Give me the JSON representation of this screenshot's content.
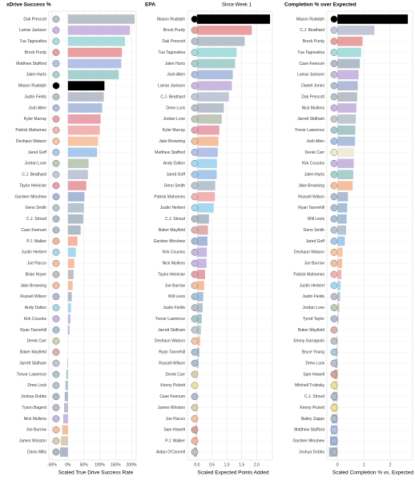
{
  "chart_data": [
    {
      "type": "bar",
      "orientation": "horizontal",
      "title": "xDrive Success %",
      "x_label": "Scaled True Drive Success Rate",
      "categories": [
        "Dak Prescott",
        "Lamar Jackson",
        "Tua Tagovailoa",
        "Brock Purdy",
        "Matthew Stafford",
        "Jalen Hurts",
        "Mason Rudolph",
        "Justin Fields",
        "Josh Allen",
        "Kyler Murray",
        "Patrick Mahomes",
        "Deshaun Watson",
        "Jared Goff",
        "Jordan Love",
        "C.J. Beathard",
        "Taylor Heinicke",
        "Gardner Minshew",
        "Geno Smith",
        "C.J. Stroud",
        "Case Keenum",
        "P.J. Walker",
        "Justin Herbert",
        "Joe Flacco",
        "Brian Hoyer",
        "Jake Browning",
        "Russell Wilson",
        "Andy Dalton",
        "Kirk Cousins",
        "Ryan Tannehill",
        "Derek Carr",
        "Baker Mayfield",
        "Jarrett Stidham",
        "Trevor Lawrence",
        "Drew Lock",
        "Joshua Dobbs",
        "Tyson Bagent",
        "Nick Mullens",
        "Joe Burrow",
        "James Winston",
        "Davis Mills"
      ],
      "values": [
        210,
        195,
        180,
        170,
        168,
        160,
        115,
        113,
        108,
        103,
        100,
        95,
        92,
        65,
        63,
        58,
        52,
        50,
        48,
        40,
        30,
        25,
        20,
        18,
        15,
        12,
        10,
        8,
        5,
        0,
        0,
        -2,
        -5,
        -8,
        -10,
        -12,
        -15,
        -18,
        -22,
        -25
      ],
      "colors": [
        "#b8c1c9",
        "#c9b8e0",
        "#a9dcdc",
        "#e8a0a0",
        "#b3c2e6",
        "#a8d0cf",
        "#000000",
        "#b9c0cc",
        "#aebfe0",
        "#e8a3ae",
        "#f2b3b3",
        "#f7c5a6",
        "#a9c9ec",
        "#c0c8b8",
        "#c0c8d8",
        "#e8a0a8",
        "#a8b8d8",
        "#b8c4d0",
        "#b0bcc8",
        "#b0bcc8",
        "#f5b5a0",
        "#a8d8f0",
        "#f5c0a0",
        "#c0c0c0",
        "#f5c0a0",
        "#b0bcd0",
        "#a8d8f0",
        "#c8b8e0",
        "#a8c0d8",
        "#d8cfb0",
        "#e0b0b0",
        "#c0c8d0",
        "#a8c8c8",
        "#b8c0cc",
        "#b0b8c8",
        "#b8c0cc",
        "#c8b8e0",
        "#f5c0a0",
        "#d8cfb0",
        "#b0b8c8"
      ],
      "xlim": [
        -60,
        215
      ],
      "xticks": [
        {
          "value": -50,
          "label": "-50%"
        },
        {
          "value": 0,
          "label": "0%"
        },
        {
          "value": 50,
          "label": "50%"
        },
        {
          "value": 100,
          "label": "100%"
        },
        {
          "value": 150,
          "label": "150%"
        },
        {
          "value": 200,
          "label": "200%"
        }
      ],
      "grid": true
    },
    {
      "type": "bar",
      "orientation": "horizontal",
      "title": "EPA",
      "subtitle": "Since Week 1",
      "x_label": "Scaled Expected Points Added",
      "categories": [
        "Mason Rudolph",
        "Brock Purdy",
        "Dak Prescott",
        "Tua Tagovailoa",
        "Jalen Hurts",
        "Josh Allen",
        "Lamar Jackson",
        "C.J. Beathard",
        "Drew Lock",
        "Jordan Love",
        "Kyler Murray",
        "Jake Browning",
        "Matthew Stafford",
        "Andy Dalton",
        "Jared Goff",
        "Geno Smith",
        "Patrick Mahomes",
        "Justin Herbert",
        "C.J. Stroud",
        "Baker Mayfield",
        "Gardner Minshew",
        "Kirk Cousins",
        "Nick Mullens",
        "Taylor Heinicke",
        "Joe Burrow",
        "Will Levis",
        "Justin Fields",
        "Trevor Lawrence",
        "Jarrett Stidham",
        "Deshaun Watson",
        "Ryan Tannehill",
        "Russell Wilson",
        "Derek Carr",
        "Kenny Pickett",
        "Case Keenum",
        "James Winston",
        "Joe Flacco",
        "Sam Howell",
        "P.J. Walker",
        "Aidan O'Connell"
      ],
      "values": [
        2.45,
        1.84,
        1.6,
        1.33,
        1.28,
        1.2,
        1.17,
        1.07,
        0.9,
        0.83,
        0.75,
        0.72,
        0.7,
        0.67,
        0.66,
        0.61,
        0.6,
        0.56,
        0.4,
        0.37,
        0.35,
        0.33,
        0.32,
        0.27,
        0.24,
        0.21,
        0.19,
        0.16,
        0.13,
        0.11,
        0.08,
        0.05,
        0.02,
        0,
        -0.01,
        -0.02,
        -0.03,
        -0.05,
        -0.07,
        -0.1
      ],
      "colors": [
        "#000000",
        "#e8a0a0",
        "#b8c1c9",
        "#a9dcdc",
        "#a8d0cf",
        "#aebfe0",
        "#c9b8e0",
        "#c0c8d8",
        "#b8c0cc",
        "#c0c8b8",
        "#e8a3ae",
        "#f5c0a0",
        "#b3c2e6",
        "#a8d8f0",
        "#a9c9ec",
        "#b8c4d0",
        "#f2b3b3",
        "#a8d8f0",
        "#b0bcc8",
        "#e0b0b0",
        "#a8b8d8",
        "#c8b8e0",
        "#c8b8e0",
        "#e8a0a8",
        "#f5c0a0",
        "#a8c0d8",
        "#b9c0cc",
        "#a8c8c8",
        "#c0c8d0",
        "#f7c5a6",
        "#a8c0d8",
        "#b0bcd0",
        "#d8cfb0",
        "#f0e0a0",
        "#b0bcc8",
        "#d8cfb0",
        "#f5c0a0",
        "#d8a0a0",
        "#f5b5a0",
        "#c0c0c0"
      ],
      "xlim": [
        -0.32,
        2.53
      ],
      "xticks": [
        {
          "value": 0,
          "label": "0.0"
        },
        0.5,
        {
          "value": 1,
          "label": "1.0"
        },
        1.5,
        {
          "value": 2,
          "label": "2.0"
        }
      ],
      "grid": true
    },
    {
      "type": "bar",
      "orientation": "horizontal",
      "title": "Completion % over Expected",
      "x_label": "Scaled Completion % vs. Expected",
      "categories": [
        "Mason Rudolph",
        "C.J. Beathard",
        "Brock Purdy",
        "Tua Tagovailoa",
        "Case Keenum",
        "Lamar Jackson",
        "Daniel Jones",
        "Dak Prescott",
        "Nick Mullens",
        "Jarrett Stidham",
        "Trevor Lawrence",
        "Josh Allen",
        "Derek Carr",
        "Kirk Cousins",
        "Jalen Hurts",
        "Jake Browning",
        "Russell Wilson",
        "Ryan Tannehill",
        "Will Levis",
        "Geno Smith",
        "Jared Goff",
        "Deshaun Watson",
        "Joe Burrow",
        "Patrick Mahomes",
        "Justin Herbert",
        "Justin Fields",
        "Jordan Love",
        "Tyrod Taylor",
        "Baker Mayfield",
        "Jimmy Garoppolo",
        "Bryce Young",
        "Drew Lock",
        "Sam Howell",
        "Mitchell Trubisky",
        "C.J. Stroud",
        "Kenny Pickett",
        "Bailey Zappe",
        "Matthew Stafford",
        "Gardner Minshew",
        "Joshua Dobbs"
      ],
      "values": [
        2.67,
        1.4,
        0.95,
        0.9,
        0.85,
        0.8,
        0.77,
        0.75,
        0.72,
        0.7,
        0.68,
        0.67,
        0.63,
        0.62,
        0.6,
        0.58,
        0.4,
        0.37,
        0.35,
        0.33,
        0.28,
        0.2,
        0.18,
        0.15,
        0.12,
        0.1,
        0.07,
        0.04,
        0,
        -0.03,
        -0.06,
        -0.09,
        -0.12,
        -0.15,
        -0.18,
        -0.2,
        -0.22,
        -0.25,
        -0.28,
        -0.32
      ],
      "colors": [
        "#000000",
        "#c0c8d8",
        "#e8a0a0",
        "#a9dcdc",
        "#b0bcc8",
        "#c9b8e0",
        "#b0bcd8",
        "#b8c1c9",
        "#c8b8e0",
        "#c0c8d0",
        "#a8c8c8",
        "#aebfe0",
        "#f0ead8",
        "#c8b8e0",
        "#a8d0cf",
        "#f5c0a0",
        "#b0bcd0",
        "#a8c0d8",
        "#a8c0d8",
        "#b8c4d0",
        "#a9c9ec",
        "#f7c5a6",
        "#f5c0a0",
        "#f2b3b3",
        "#a8d8f0",
        "#b9c0cc",
        "#c0c8b8",
        "#b0bcd8",
        "#e0b0b0",
        "#c0c0c0",
        "#a8c8e0",
        "#b8c0cc",
        "#d8a0a0",
        "#f0e0a0",
        "#b0bcc8",
        "#f0e0a0",
        "#b0bcc8",
        "#b3c2e6",
        "#a8b8d8",
        "#b0b8c8"
      ],
      "xlim": [
        -0.4,
        2.85
      ],
      "xticks": [
        0,
        1,
        2
      ],
      "grid": true
    }
  ]
}
